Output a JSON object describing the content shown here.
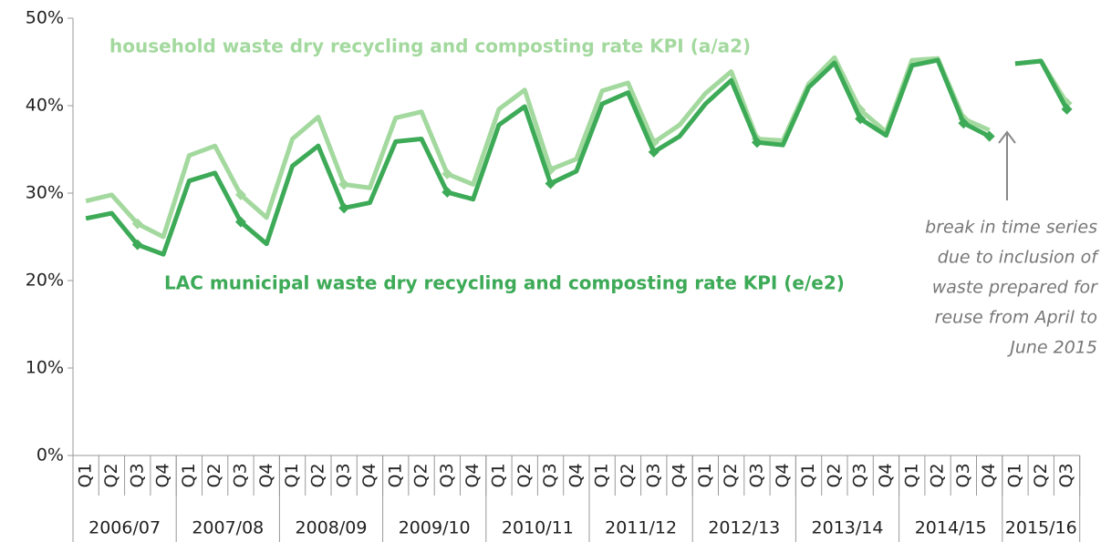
{
  "chart_data": {
    "type": "line",
    "category_groups": [
      {
        "label": "2006/07",
        "categories": [
          "Q1",
          "Q2",
          "Q3",
          "Q4"
        ]
      },
      {
        "label": "2007/08",
        "categories": [
          "Q1",
          "Q2",
          "Q3",
          "Q4"
        ]
      },
      {
        "label": "2008/09",
        "categories": [
          "Q1",
          "Q2",
          "Q3",
          "Q4"
        ]
      },
      {
        "label": "2009/10",
        "categories": [
          "Q1",
          "Q2",
          "Q3",
          "Q4"
        ]
      },
      {
        "label": "2010/11",
        "categories": [
          "Q1",
          "Q2",
          "Q3",
          "Q4"
        ]
      },
      {
        "label": "2011/12",
        "categories": [
          "Q1",
          "Q2",
          "Q3",
          "Q4"
        ]
      },
      {
        "label": "2012/13",
        "categories": [
          "Q1",
          "Q2",
          "Q3",
          "Q4"
        ]
      },
      {
        "label": "2013/14",
        "categories": [
          "Q1",
          "Q2",
          "Q3",
          "Q4"
        ]
      },
      {
        "label": "2014/15",
        "categories": [
          "Q1",
          "Q2",
          "Q3",
          "Q4"
        ]
      },
      {
        "label": "2015/16",
        "categories": [
          "Q1",
          "Q2",
          "Q3"
        ]
      }
    ],
    "series": [
      {
        "name": "household waste dry recycling and composting rate KPI (a/a2)",
        "color": "#a3d99e",
        "segments": [
          [
            29.1,
            29.8,
            26.5,
            25.0,
            34.3,
            35.4,
            29.8,
            27.2,
            36.2,
            38.7,
            31.0,
            30.6,
            38.6,
            39.3,
            32.2,
            31.0,
            39.6,
            41.8,
            32.7,
            33.9,
            41.7,
            42.6,
            35.8,
            37.8,
            41.4,
            43.9,
            36.2,
            36.0,
            42.5,
            45.5,
            39.5,
            37.0,
            45.2,
            45.4,
            38.5,
            37.2
          ],
          [
            44.8,
            45.1,
            40.3
          ]
        ]
      },
      {
        "name": "LAC municipal waste dry recycling and composting rate KPI (e/e2)",
        "color": "#3daa57",
        "segments": [
          [
            27.1,
            27.7,
            24.1,
            23.0,
            31.4,
            32.3,
            26.7,
            24.2,
            33.1,
            35.4,
            28.3,
            28.9,
            35.9,
            36.2,
            30.1,
            29.3,
            37.8,
            39.9,
            31.1,
            32.5,
            40.2,
            41.5,
            34.7,
            36.5,
            40.2,
            42.9,
            35.8,
            35.5,
            42.1,
            44.9,
            38.5,
            36.6,
            44.6,
            45.2,
            38.0,
            36.5
          ],
          [
            44.8,
            45.1,
            39.6
          ]
        ]
      }
    ],
    "annotation": [
      "break in time series",
      "due to inclusion of",
      "waste prepared for",
      "reuse from April to",
      "June 2015"
    ],
    "ylim": [
      0,
      50
    ],
    "yticks": [
      {
        "value": 0,
        "label": "0%"
      },
      {
        "value": 10,
        "label": "10%"
      },
      {
        "value": 20,
        "label": "20%"
      },
      {
        "value": 30,
        "label": "30%"
      },
      {
        "value": 40,
        "label": "40%"
      },
      {
        "value": 50,
        "label": "50%"
      }
    ]
  }
}
